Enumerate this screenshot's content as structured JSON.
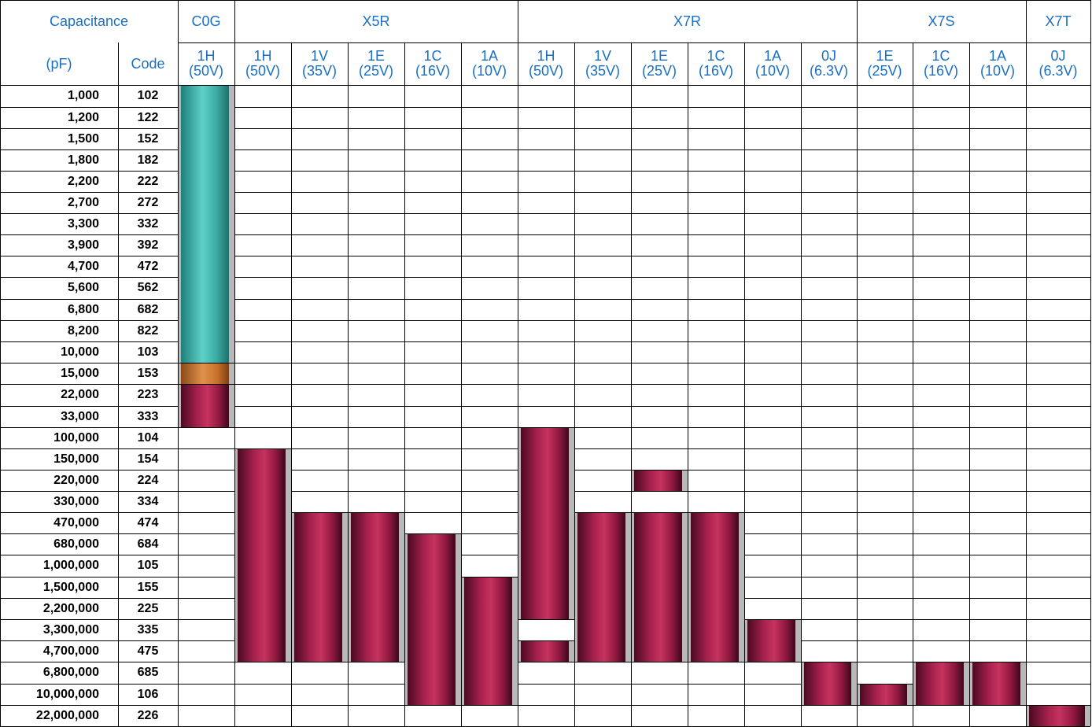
{
  "table": {
    "header_top": {
      "capacitance": "Capacitance",
      "groups": [
        {
          "label": "C0G",
          "span": 1
        },
        {
          "label": "X5R",
          "span": 5
        },
        {
          "label": "X7R",
          "span": 6
        },
        {
          "label": "X7S",
          "span": 3
        },
        {
          "label": "X7T",
          "span": 1
        }
      ]
    },
    "header_sub": {
      "unit": "(pF)",
      "code": "Code",
      "columns": [
        {
          "code": "1H",
          "voltage": "(50V)"
        },
        {
          "code": "1H",
          "voltage": "(50V)"
        },
        {
          "code": "1V",
          "voltage": "(35V)"
        },
        {
          "code": "1E",
          "voltage": "(25V)"
        },
        {
          "code": "1C",
          "voltage": "(16V)"
        },
        {
          "code": "1A",
          "voltage": "(10V)"
        },
        {
          "code": "1H",
          "voltage": "(50V)"
        },
        {
          "code": "1V",
          "voltage": "(35V)"
        },
        {
          "code": "1E",
          "voltage": "(25V)"
        },
        {
          "code": "1C",
          "voltage": "(16V)"
        },
        {
          "code": "1A",
          "voltage": "(10V)"
        },
        {
          "code": "0J",
          "voltage": "(6.3V)"
        },
        {
          "code": "1E",
          "voltage": "(25V)"
        },
        {
          "code": "1C",
          "voltage": "(16V)"
        },
        {
          "code": "1A",
          "voltage": "(10V)"
        },
        {
          "code": "0J",
          "voltage": "(6.3V)"
        }
      ]
    },
    "rows": [
      {
        "cap": "1,000",
        "code": "102"
      },
      {
        "cap": "1,200",
        "code": "122"
      },
      {
        "cap": "1,500",
        "code": "152"
      },
      {
        "cap": "1,800",
        "code": "182"
      },
      {
        "cap": "2,200",
        "code": "222"
      },
      {
        "cap": "2,700",
        "code": "272"
      },
      {
        "cap": "3,300",
        "code": "332"
      },
      {
        "cap": "3,900",
        "code": "392"
      },
      {
        "cap": "4,700",
        "code": "472"
      },
      {
        "cap": "5,600",
        "code": "562"
      },
      {
        "cap": "6,800",
        "code": "682"
      },
      {
        "cap": "8,200",
        "code": "822"
      },
      {
        "cap": "10,000",
        "code": "103"
      },
      {
        "cap": "15,000",
        "code": "153"
      },
      {
        "cap": "22,000",
        "code": "223"
      },
      {
        "cap": "33,000",
        "code": "333"
      },
      {
        "cap": "100,000",
        "code": "104"
      },
      {
        "cap": "150,000",
        "code": "154"
      },
      {
        "cap": "220,000",
        "code": "224"
      },
      {
        "cap": "330,000",
        "code": "334"
      },
      {
        "cap": "470,000",
        "code": "474"
      },
      {
        "cap": "680,000",
        "code": "684"
      },
      {
        "cap": "1,000,000",
        "code": "105"
      },
      {
        "cap": "1,500,000",
        "code": "155"
      },
      {
        "cap": "2,200,000",
        "code": "225"
      },
      {
        "cap": "3,300,000",
        "code": "335"
      },
      {
        "cap": "4,700,000",
        "code": "475"
      },
      {
        "cap": "6,800,000",
        "code": "685"
      },
      {
        "cap": "10,000,000",
        "code": "106"
      },
      {
        "cap": "22,000,000",
        "code": "226"
      }
    ]
  },
  "colors": {
    "header_text": "#1a6fc4",
    "grid_line": "#000000",
    "bar_teal": "#3db5ad",
    "bar_orange": "#d07a35",
    "bar_magenta": "#a01a48",
    "shadow": "#b8b8b8"
  },
  "bars": [
    {
      "col": 0,
      "from": 0,
      "to": 13,
      "color": "teal"
    },
    {
      "col": 0,
      "from": 13,
      "to": 14,
      "color": "orange"
    },
    {
      "col": 0,
      "from": 14,
      "to": 16,
      "color": "magenta"
    },
    {
      "col": 1,
      "from": 17,
      "to": 27,
      "color": "magenta"
    },
    {
      "col": 2,
      "from": 20,
      "to": 27,
      "color": "magenta"
    },
    {
      "col": 3,
      "from": 20,
      "to": 27,
      "color": "magenta"
    },
    {
      "col": 4,
      "from": 21,
      "to": 29,
      "color": "magenta"
    },
    {
      "col": 5,
      "from": 23,
      "to": 29,
      "color": "magenta"
    },
    {
      "col": 6,
      "from": 16,
      "to": 25,
      "color": "magenta"
    },
    {
      "col": 6,
      "from": 26,
      "to": 27,
      "color": "magenta"
    },
    {
      "col": 7,
      "from": 20,
      "to": 27,
      "color": "magenta"
    },
    {
      "col": 8,
      "from": 18,
      "to": 19,
      "color": "magenta"
    },
    {
      "col": 8,
      "from": 20,
      "to": 27,
      "color": "magenta"
    },
    {
      "col": 9,
      "from": 20,
      "to": 27,
      "color": "magenta"
    },
    {
      "col": 10,
      "from": 25,
      "to": 27,
      "color": "magenta"
    },
    {
      "col": 11,
      "from": 27,
      "to": 29,
      "color": "magenta"
    },
    {
      "col": 12,
      "from": 28,
      "to": 29,
      "color": "magenta"
    },
    {
      "col": 13,
      "from": 27,
      "to": 29,
      "color": "magenta"
    },
    {
      "col": 14,
      "from": 27,
      "to": 29,
      "color": "magenta"
    },
    {
      "col": 15,
      "from": 29,
      "to": 30,
      "color": "magenta"
    }
  ]
}
